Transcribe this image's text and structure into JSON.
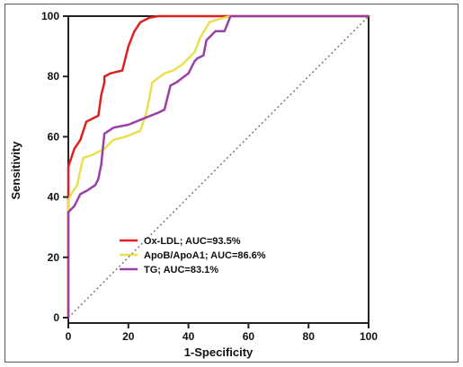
{
  "chart_data": {
    "type": "line",
    "title": "",
    "xlabel": "1-Specificity",
    "ylabel": "Sensitivity",
    "xlim": [
      0,
      100
    ],
    "ylim": [
      0,
      100
    ],
    "x_ticks": [
      "0",
      "20",
      "40",
      "60",
      "80",
      "100"
    ],
    "y_ticks": [
      "0",
      "20",
      "40",
      "60",
      "80",
      "100"
    ],
    "grid": false,
    "legend_position": "lower-left",
    "reference_line": {
      "style": "dotted",
      "color": "#777777",
      "x": [
        0,
        100
      ],
      "y": [
        0,
        100
      ]
    },
    "series": [
      {
        "name": "Ox-LDL; AUC=93.5%",
        "color": "#e02020",
        "x": [
          0,
          0,
          1,
          2,
          4,
          6,
          10,
          11,
          12,
          12,
          14,
          18,
          20,
          22,
          24,
          27,
          30,
          100
        ],
        "y": [
          0,
          50,
          53,
          56,
          59,
          65,
          67,
          74,
          78,
          80,
          81,
          82,
          90,
          95,
          98,
          99.5,
          100,
          100
        ]
      },
      {
        "name": "ApoB/ApoA1; AUC=86.6%",
        "color": "#e8e050",
        "x": [
          0,
          0,
          1,
          3,
          4,
          5,
          8,
          10,
          12,
          13,
          15,
          19,
          24,
          26,
          28,
          32,
          35,
          38,
          42,
          44,
          47,
          50,
          54,
          100
        ],
        "y": [
          0,
          39,
          41,
          44,
          49,
          53,
          54,
          55,
          56,
          57,
          59,
          60,
          62,
          68,
          78,
          81,
          82,
          84,
          88,
          93,
          98,
          99,
          100,
          100
        ]
      },
      {
        "name": "TG; AUC=83.1%",
        "color": "#9a3fa8",
        "x": [
          0,
          0,
          1,
          2,
          3,
          4,
          6,
          9,
          10,
          11,
          12,
          15,
          20,
          25,
          30,
          32,
          34,
          36,
          40,
          42,
          43,
          45,
          46,
          49,
          52,
          54,
          100
        ],
        "y": [
          0,
          35,
          36,
          37,
          39,
          41,
          42,
          44,
          46,
          51,
          61,
          63,
          64,
          66,
          68,
          69,
          77,
          78,
          81,
          85,
          86,
          87,
          92,
          95,
          95,
          100,
          100
        ]
      }
    ]
  }
}
